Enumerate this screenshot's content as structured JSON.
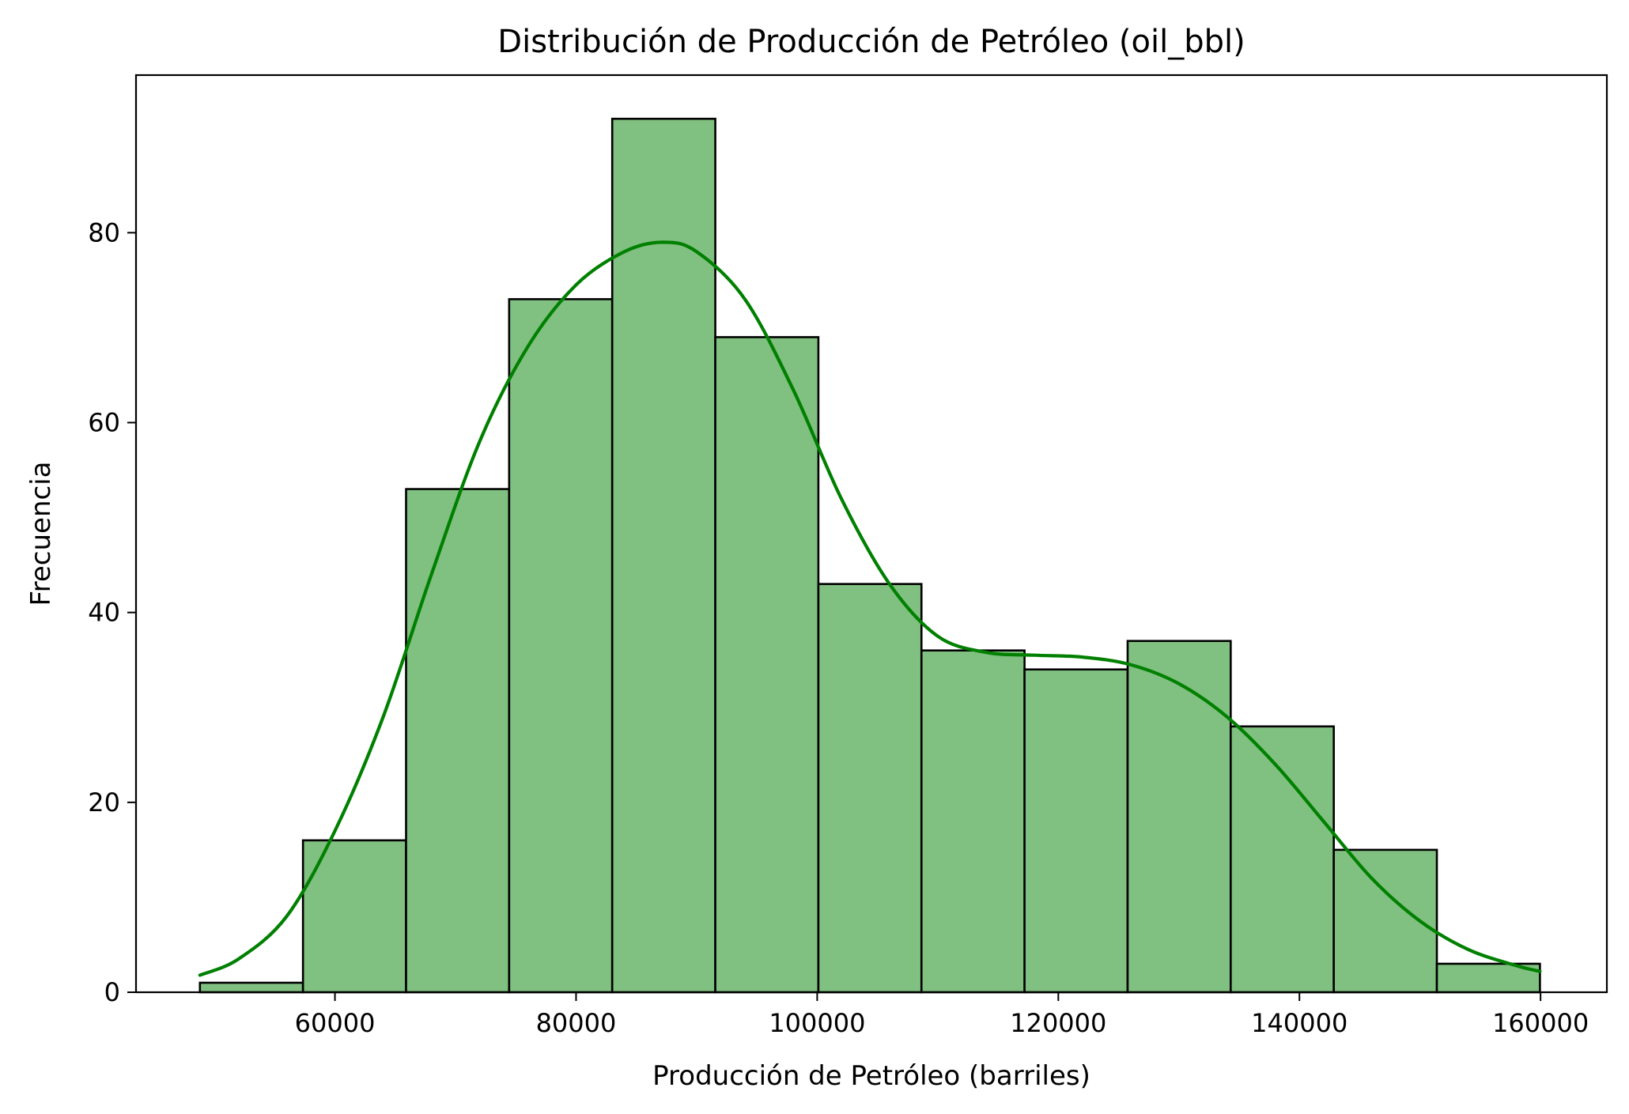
{
  "chart_data": {
    "type": "bar",
    "subtype": "histogram-with-kde",
    "title": "Distribución de Producción de Petróleo (oil_bbl)",
    "xlabel": "Producción de Petróleo (barriles)",
    "ylabel": "Frecuencia",
    "xlim": [
      43500,
      165500
    ],
    "ylim": [
      0,
      96.6
    ],
    "xticks": [
      60000,
      80000,
      100000,
      120000,
      140000,
      160000
    ],
    "yticks": [
      0,
      20,
      40,
      60,
      80
    ],
    "grid": false,
    "bins": [
      {
        "x0": 48800,
        "x1": 57350,
        "count": 1
      },
      {
        "x0": 57350,
        "x1": 65900,
        "count": 16
      },
      {
        "x0": 65900,
        "x1": 74450,
        "count": 53
      },
      {
        "x0": 74450,
        "x1": 83000,
        "count": 73
      },
      {
        "x0": 83000,
        "x1": 91550,
        "count": 92
      },
      {
        "x0": 91550,
        "x1": 100100,
        "count": 69
      },
      {
        "x0": 100100,
        "x1": 108650,
        "count": 43
      },
      {
        "x0": 108650,
        "x1": 117200,
        "count": 36
      },
      {
        "x0": 117200,
        "x1": 125750,
        "count": 34
      },
      {
        "x0": 125750,
        "x1": 134300,
        "count": 37
      },
      {
        "x0": 134300,
        "x1": 142850,
        "count": 28
      },
      {
        "x0": 142850,
        "x1": 151400,
        "count": 15
      },
      {
        "x0": 151400,
        "x1": 159950,
        "count": 3
      }
    ],
    "kde": {
      "x": [
        48800,
        52000,
        56000,
        60000,
        64000,
        68000,
        72000,
        76000,
        80000,
        84000,
        87200,
        90000,
        94000,
        98000,
        102000,
        106000,
        110000,
        114000,
        118000,
        122000,
        126000,
        130000,
        134000,
        138000,
        142000,
        146000,
        150000,
        154000,
        158000,
        159950
      ],
      "y": [
        1.8,
        3.5,
        8,
        17,
        29,
        44,
        58,
        68,
        74.5,
        78,
        79,
        78,
        73,
        63.5,
        52,
        43,
        37.5,
        35.8,
        35.5,
        35.3,
        34.5,
        32.5,
        29,
        24,
        18,
        12,
        7.5,
        4.5,
        2.8,
        2.2
      ]
    },
    "colors": {
      "bar_fill": "#80c080",
      "bar_edge": "#000000",
      "kde_line": "#008000"
    }
  }
}
